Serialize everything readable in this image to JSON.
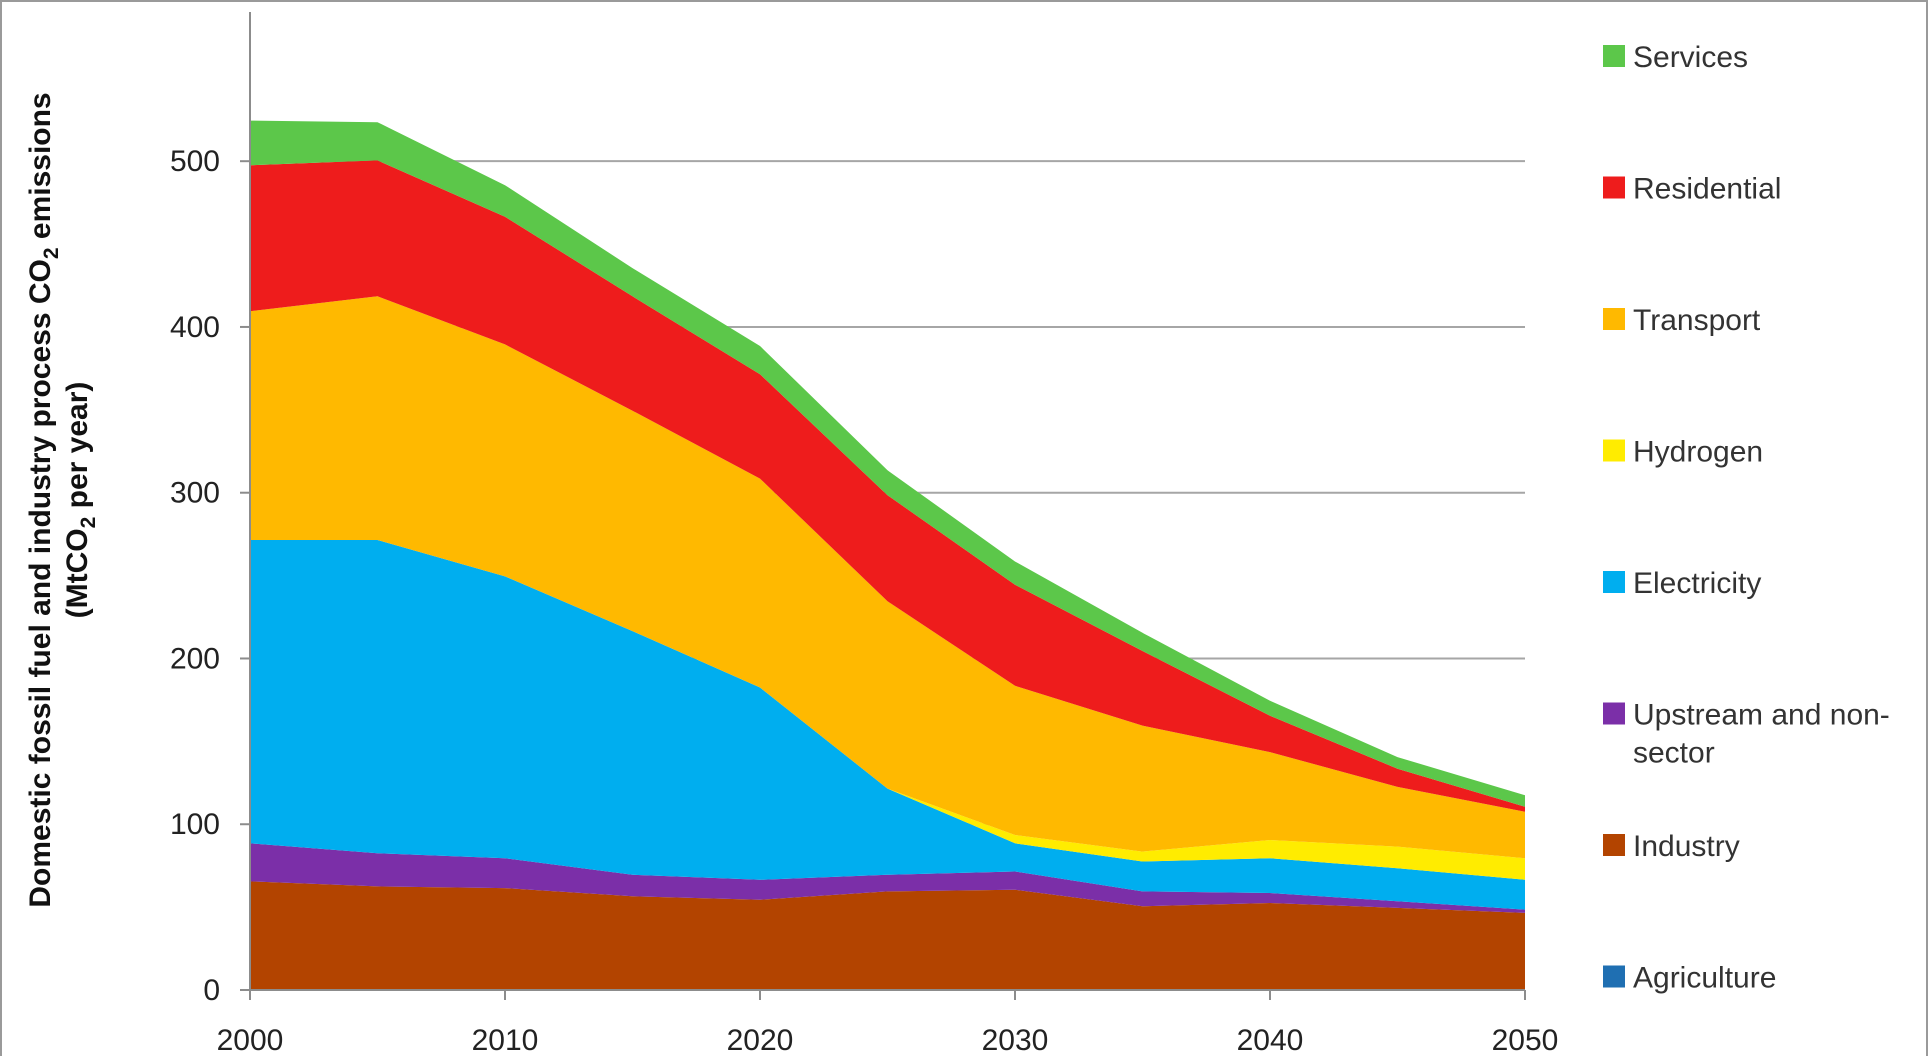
{
  "chart_data": {
    "type": "area",
    "stacked": true,
    "x": [
      2000,
      2005,
      2010,
      2015,
      2020,
      2025,
      2030,
      2035,
      2040,
      2045,
      2050
    ],
    "ylabel_line1": "Domestic fossil fuel and industry process CO",
    "ylabel_line1_sub": "2",
    "ylabel_line1_end": " emissions",
    "ylabel_line2": "(MtCO",
    "ylabel_line2_sub": "2",
    "ylabel_line2_end": " per year)",
    "xlabel": "",
    "ylim": [
      0,
      590
    ],
    "xlim": [
      2000,
      2050
    ],
    "grid": true,
    "legend_position": "right",
    "y_ticks": [
      "0",
      "100",
      "200",
      "300",
      "400",
      "500"
    ],
    "y_tick_values": [
      0,
      100,
      200,
      300,
      400,
      500
    ],
    "x_ticks": [
      "2000",
      "2010",
      "2020",
      "2030",
      "2040",
      "2050"
    ],
    "x_tick_values": [
      2000,
      2010,
      2020,
      2030,
      2040,
      2050
    ],
    "series": [
      {
        "name": "Agriculture",
        "color": "#1f6fb2",
        "values": [
          0.5,
          0.5,
          0.5,
          0.5,
          0.5,
          0.5,
          0.5,
          0.5,
          0.5,
          0.5,
          0.5
        ]
      },
      {
        "name": "Industry",
        "color": "#b34400",
        "values": [
          65,
          62,
          61,
          56,
          54,
          59,
          60,
          50,
          52,
          49,
          46
        ]
      },
      {
        "name": "Upstream and non-sector",
        "color": "#7b2fa8",
        "values": [
          23,
          20,
          18,
          13,
          12,
          10,
          11,
          9,
          6,
          4,
          2
        ]
      },
      {
        "name": "Electricity",
        "color": "#00aeef",
        "values": [
          183,
          189,
          170,
          147,
          116,
          52,
          17,
          18,
          21,
          20,
          18
        ]
      },
      {
        "name": "Hydrogen",
        "color": "#ffec00",
        "values": [
          0,
          0,
          0,
          0,
          0,
          0,
          5,
          6,
          11,
          13,
          13
        ]
      },
      {
        "name": "Transport",
        "color": "#ffb900",
        "values": [
          138,
          147,
          140,
          133,
          126,
          113,
          90,
          76,
          53,
          36,
          28
        ]
      },
      {
        "name": "Residential",
        "color": "#ee1c1c",
        "values": [
          88,
          82,
          77,
          69,
          63,
          64,
          61,
          45,
          22,
          11,
          3
        ]
      },
      {
        "name": "Services",
        "color": "#5cc74a",
        "values": [
          27,
          23,
          19,
          17,
          17,
          15,
          14,
          11,
          9,
          7,
          7
        ]
      }
    ],
    "legend_order": [
      "Services",
      "Residential",
      "Transport",
      "Hydrogen",
      "Electricity",
      "Upstream and non-sector",
      "Industry",
      "Agriculture"
    ],
    "legend_lines": {
      "Services": [
        "Services"
      ],
      "Residential": [
        "Residential"
      ],
      "Transport": [
        "Transport"
      ],
      "Hydrogen": [
        "Hydrogen"
      ],
      "Electricity": [
        "Electricity"
      ],
      "Upstream and non-sector": [
        "Upstream and non-",
        "sector"
      ],
      "Industry": [
        "Industry"
      ],
      "Agriculture": [
        "Agriculture"
      ]
    },
    "colors": {
      "grid": "#a6a6a6",
      "axis": "#8c8c8c",
      "frame": "#9a9a9a"
    }
  }
}
